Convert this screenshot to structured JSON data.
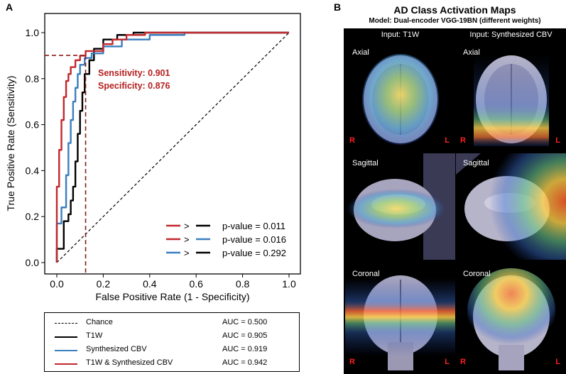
{
  "panel_a_label": "A",
  "panel_b_label": "B",
  "chart_data": {
    "type": "line",
    "xlabel": "False Positive Rate (1 - Specificity)",
    "ylabel": "True Positive Rate (Sensitivity)",
    "xlim": [
      0,
      1
    ],
    "ylim": [
      0,
      1
    ],
    "x_ticks": [
      "0.0",
      "0.2",
      "0.4",
      "0.6",
      "0.8",
      "1.0"
    ],
    "y_ticks": [
      "0.0",
      "0.2",
      "0.4",
      "0.6",
      "0.8",
      "1.0"
    ],
    "operating_point": {
      "x": 0.124,
      "y": 0.901
    },
    "annotations": [
      "Sensitivity: 0.901",
      "Specificity: 0.876"
    ],
    "series": [
      {
        "name": "Chance",
        "auc": "AUC = 0.500",
        "color": "#000000",
        "dash": true,
        "x": [
          0,
          1
        ],
        "y": [
          0,
          1
        ]
      },
      {
        "name": "T1W",
        "auc": "AUC = 0.905",
        "color": "#000000",
        "dash": false,
        "x": [
          0,
          0,
          0.03,
          0.03,
          0.05,
          0.05,
          0.06,
          0.06,
          0.07,
          0.07,
          0.08,
          0.08,
          0.09,
          0.09,
          0.1,
          0.1,
          0.11,
          0.11,
          0.12,
          0.12,
          0.14,
          0.14,
          0.16,
          0.16,
          0.2,
          0.2,
          0.26,
          0.26,
          0.33,
          0.33,
          0.45,
          0.45,
          1.0
        ],
        "y": [
          0,
          0.06,
          0.06,
          0.18,
          0.18,
          0.21,
          0.21,
          0.27,
          0.27,
          0.33,
          0.33,
          0.44,
          0.44,
          0.56,
          0.56,
          0.66,
          0.66,
          0.74,
          0.74,
          0.82,
          0.82,
          0.88,
          0.88,
          0.93,
          0.93,
          0.97,
          0.97,
          0.99,
          0.99,
          1.0,
          1.0,
          1.0,
          1.0
        ]
      },
      {
        "name": "Synthesized CBV",
        "auc": "AUC = 0.919",
        "color": "#3a7ebf",
        "dash": false,
        "x": [
          0,
          0,
          0.02,
          0.02,
          0.04,
          0.04,
          0.05,
          0.05,
          0.06,
          0.06,
          0.07,
          0.07,
          0.08,
          0.08,
          0.09,
          0.09,
          0.1,
          0.1,
          0.12,
          0.12,
          0.15,
          0.15,
          0.2,
          0.2,
          0.28,
          0.28,
          0.4,
          0.4,
          0.55,
          0.55,
          1.0
        ],
        "y": [
          0,
          0.17,
          0.17,
          0.24,
          0.24,
          0.38,
          0.38,
          0.52,
          0.52,
          0.62,
          0.62,
          0.7,
          0.7,
          0.76,
          0.76,
          0.82,
          0.82,
          0.86,
          0.86,
          0.89,
          0.89,
          0.91,
          0.91,
          0.94,
          0.94,
          0.97,
          0.97,
          0.99,
          0.99,
          1.0,
          1.0
        ]
      },
      {
        "name": "T1W & Synthesized CBV",
        "auc": "AUC = 0.942",
        "color": "#c0282d",
        "dash": false,
        "x": [
          0,
          0,
          0.01,
          0.01,
          0.02,
          0.02,
          0.03,
          0.03,
          0.04,
          0.04,
          0.05,
          0.05,
          0.06,
          0.06,
          0.08,
          0.08,
          0.1,
          0.1,
          0.124,
          0.124,
          0.2,
          0.2,
          0.24,
          0.24,
          0.3,
          0.3,
          0.38,
          0.38,
          1.0
        ],
        "y": [
          0,
          0.33,
          0.33,
          0.49,
          0.49,
          0.62,
          0.62,
          0.72,
          0.72,
          0.79,
          0.79,
          0.82,
          0.82,
          0.85,
          0.85,
          0.88,
          0.88,
          0.9,
          0.9,
          0.92,
          0.92,
          0.95,
          0.95,
          0.97,
          0.97,
          0.99,
          0.99,
          1.0,
          1.0
        ]
      }
    ],
    "comparisons": [
      {
        "a": "#c0282d",
        "b": "#000000",
        "op": ">",
        "label": "p-value = 0.011"
      },
      {
        "a": "#c0282d",
        "b": "#3a7ebf",
        "op": ">",
        "label": "p-value = 0.016"
      },
      {
        "a": "#3a7ebf",
        "b": "#000000",
        "op": ">",
        "label": "p-value = 0.292"
      }
    ]
  },
  "panel_b": {
    "title": "AD Class Activation Maps",
    "subtitle": "Model: Dual-encoder VGG-19BN (different weights)",
    "columns": [
      "Input: T1W",
      "Input: Synthesized CBV"
    ],
    "rows": [
      "Axial",
      "Sagittal",
      "Coronal"
    ],
    "right_label": "R",
    "left_label": "L"
  }
}
